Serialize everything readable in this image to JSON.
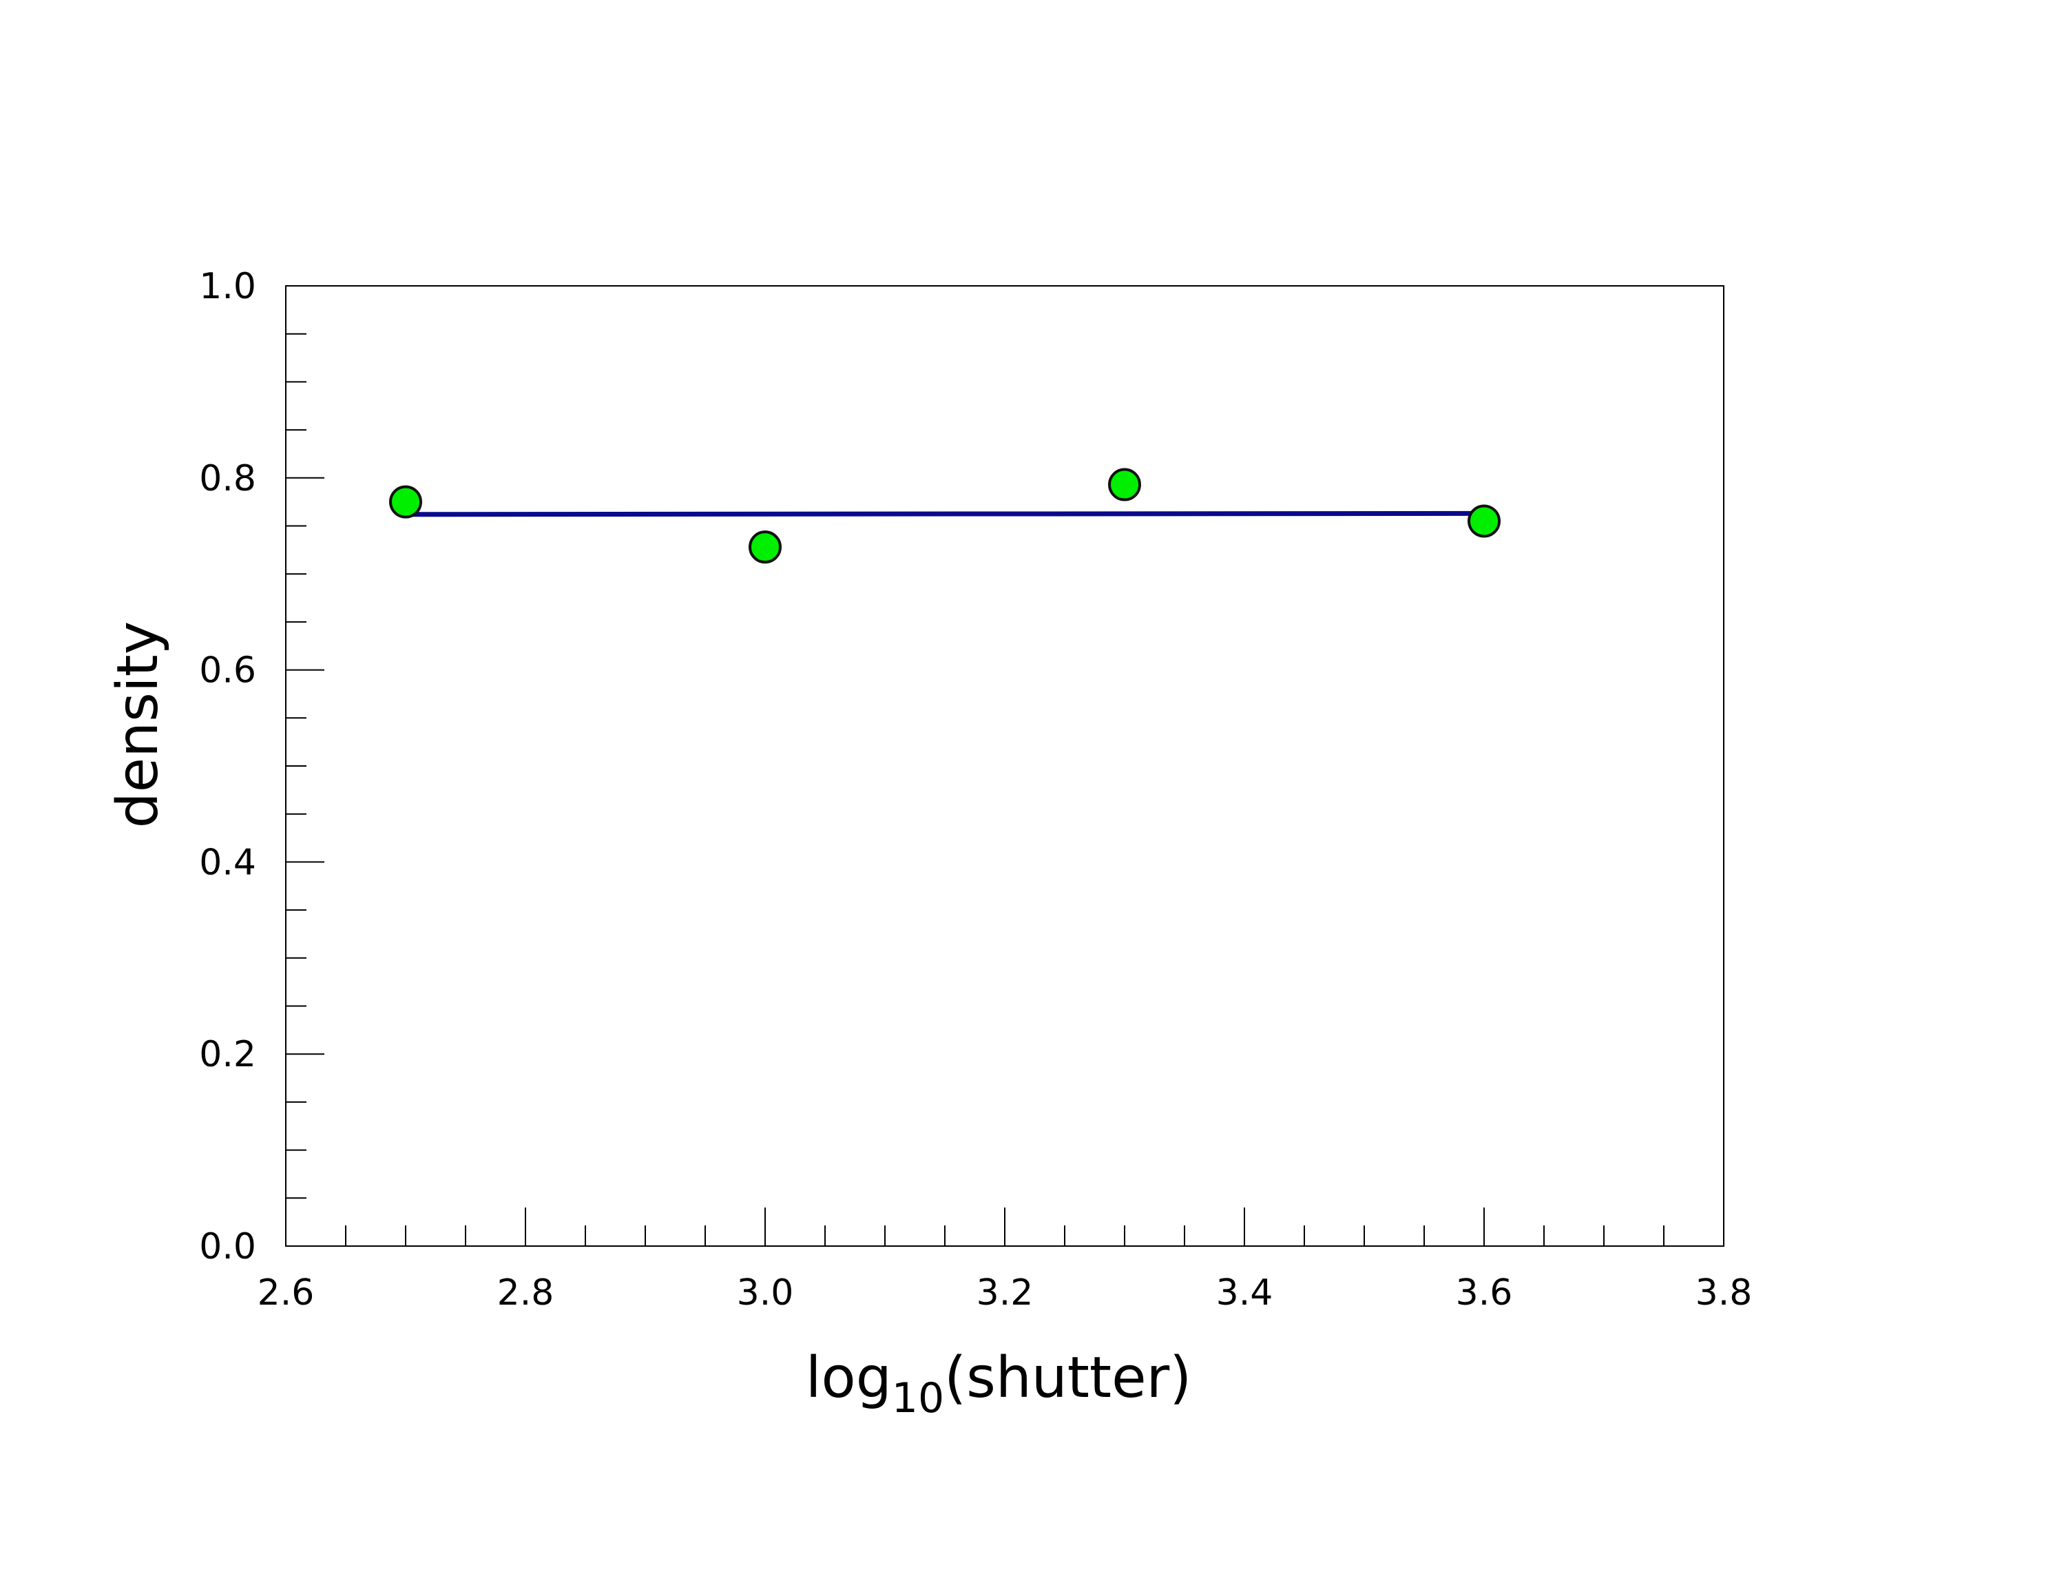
{
  "chart_data": {
    "type": "scatter",
    "xlabel": {
      "main": "log",
      "sub": "10",
      "rest": "(shutter)"
    },
    "ylabel": "density",
    "xlim": [
      2.6,
      3.8
    ],
    "ylim": [
      0.0,
      1.0
    ],
    "x_ticks": [
      "2.6",
      "2.8",
      "3.0",
      "3.2",
      "3.4",
      "3.6",
      "3.8"
    ],
    "y_ticks": [
      "0.0",
      "0.2",
      "0.4",
      "0.6",
      "0.8",
      "1.0"
    ],
    "grid": false,
    "series": [
      {
        "points": [
          {
            "x": 2.7,
            "y": 0.775
          },
          {
            "x": 3.0,
            "y": 0.728
          },
          {
            "x": 3.3,
            "y": 0.793
          },
          {
            "x": 3.6,
            "y": 0.755
          }
        ]
      }
    ],
    "fit_line": {
      "x_start": 2.7,
      "x_end": 3.6,
      "y_start": 0.762,
      "y_end": 0.763
    },
    "colors": {
      "marker_fill": "#00ee00",
      "marker_stroke": "#111111",
      "fit_line": "#0a0a8c",
      "axis": "#000000"
    }
  }
}
